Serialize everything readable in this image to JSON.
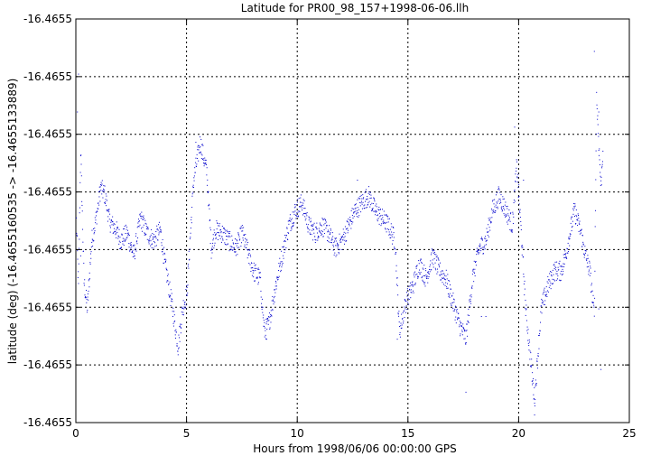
{
  "chart_data": {
    "type": "scatter",
    "title": "Latitude for PR00_98_157+1998-06-06.llh",
    "xlabel": "Hours from 1998/06/06 00:00:00 GPS",
    "ylabel": "latitude (deg) (-16.4655160535 -> -16.4655133889)",
    "xlim": [
      0,
      25
    ],
    "ylim": [
      -16.4655160535,
      -16.4655133889
    ],
    "x_ticks": [
      0,
      5,
      10,
      15,
      20,
      25
    ],
    "x_tick_labels": [
      "0",
      "5",
      "10",
      "15",
      "20",
      "25"
    ],
    "y_tick_labels": [
      "-16.4655",
      "-16.4655",
      "-16.4655",
      "-16.4655",
      "-16.4655",
      "-16.4655",
      "-16.4655",
      "-16.4655"
    ],
    "grid": true,
    "legend": "none",
    "series_color": "#0000cc",
    "trace": [
      [
        0.0,
        -16.46551472
      ],
      [
        0.1,
        -16.46551516
      ],
      [
        0.2,
        -16.46551425
      ],
      [
        0.35,
        -16.46551512
      ],
      [
        0.5,
        -16.4655153
      ],
      [
        0.7,
        -16.46551485
      ],
      [
        0.9,
        -16.4655147
      ],
      [
        1.1,
        -16.4655145
      ],
      [
        1.3,
        -16.46551455
      ],
      [
        1.5,
        -16.46551472
      ],
      [
        1.8,
        -16.46551478
      ],
      [
        2.0,
        -16.46551485
      ],
      [
        2.3,
        -16.4655148
      ],
      [
        2.6,
        -16.46551495
      ],
      [
        2.9,
        -16.4655147
      ],
      [
        3.2,
        -16.4655148
      ],
      [
        3.5,
        -16.46551485
      ],
      [
        3.8,
        -16.46551478
      ],
      [
        4.0,
        -16.465515
      ],
      [
        4.3,
        -16.46551525
      ],
      [
        4.6,
        -16.46551555
      ],
      [
        4.8,
        -16.4655153
      ],
      [
        5.0,
        -16.4655152
      ],
      [
        5.3,
        -16.46551445
      ],
      [
        5.6,
        -16.4655142
      ],
      [
        5.9,
        -16.4655144
      ],
      [
        6.1,
        -16.4655149
      ],
      [
        6.3,
        -16.46551478
      ],
      [
        6.6,
        -16.4655148
      ],
      [
        6.9,
        -16.46551485
      ],
      [
        7.2,
        -16.4655149
      ],
      [
        7.5,
        -16.4655148
      ],
      [
        7.8,
        -16.46551495
      ],
      [
        8.0,
        -16.46551505
      ],
      [
        8.3,
        -16.4655151
      ],
      [
        8.5,
        -16.46551545
      ],
      [
        8.7,
        -16.4655154
      ],
      [
        9.0,
        -16.46551515
      ],
      [
        9.3,
        -16.46551495
      ],
      [
        9.6,
        -16.46551475
      ],
      [
        9.9,
        -16.46551465
      ],
      [
        10.2,
        -16.4655146
      ],
      [
        10.5,
        -16.46551475
      ],
      [
        10.8,
        -16.4655148
      ],
      [
        11.1,
        -16.46551475
      ],
      [
        11.4,
        -16.4655148
      ],
      [
        11.7,
        -16.4655149
      ],
      [
        12.0,
        -16.46551485
      ],
      [
        12.3,
        -16.46551475
      ],
      [
        12.6,
        -16.46551465
      ],
      [
        12.9,
        -16.4655146
      ],
      [
        13.2,
        -16.46551455
      ],
      [
        13.5,
        -16.46551465
      ],
      [
        13.8,
        -16.4655147
      ],
      [
        14.1,
        -16.46551475
      ],
      [
        14.4,
        -16.46551485
      ],
      [
        14.6,
        -16.46551545
      ],
      [
        14.9,
        -16.46551525
      ],
      [
        15.2,
        -16.46551515
      ],
      [
        15.5,
        -16.465515
      ],
      [
        15.8,
        -16.4655151
      ],
      [
        16.1,
        -16.46551495
      ],
      [
        16.4,
        -16.46551505
      ],
      [
        16.7,
        -16.4655151
      ],
      [
        17.0,
        -16.46551525
      ],
      [
        17.3,
        -16.4655154
      ],
      [
        17.6,
        -16.4655155
      ],
      [
        17.9,
        -16.4655151
      ],
      [
        18.2,
        -16.4655149
      ],
      [
        18.5,
        -16.46551485
      ],
      [
        18.8,
        -16.46551465
      ],
      [
        19.1,
        -16.46551455
      ],
      [
        19.4,
        -16.46551465
      ],
      [
        19.7,
        -16.46551475
      ],
      [
        19.9,
        -16.46551435
      ],
      [
        20.1,
        -16.4655148
      ],
      [
        20.3,
        -16.4655153
      ],
      [
        20.5,
        -16.4655156
      ],
      [
        20.7,
        -16.4655159
      ],
      [
        21.0,
        -16.4655153
      ],
      [
        21.3,
        -16.46551515
      ],
      [
        21.6,
        -16.46551505
      ],
      [
        21.9,
        -16.46551505
      ],
      [
        22.1,
        -16.46551495
      ],
      [
        22.3,
        -16.4655148
      ],
      [
        22.5,
        -16.46551465
      ],
      [
        22.8,
        -16.4655148
      ],
      [
        23.0,
        -16.46551495
      ],
      [
        23.2,
        -16.46551505
      ],
      [
        23.4,
        -16.46551535
      ],
      [
        23.5,
        -16.4655139
      ],
      [
        23.7,
        -16.4655145
      ],
      [
        23.8,
        -16.4655142
      ]
    ],
    "outliers": [
      [
        0.1,
        -16.46551375
      ],
      [
        0.05,
        -16.465514
      ],
      [
        0.2,
        -16.46551495
      ],
      [
        4.7,
        -16.46551575
      ],
      [
        5.4,
        -16.4655142
      ],
      [
        8.6,
        -16.4655155
      ],
      [
        14.5,
        -16.4655155
      ],
      [
        18.3,
        -16.46551535
      ],
      [
        18.5,
        -16.46551535
      ],
      [
        19.8,
        -16.4655141
      ],
      [
        20.2,
        -16.46551445
      ],
      [
        20.6,
        -16.4655158
      ],
      [
        20.7,
        -16.465516
      ],
      [
        23.4,
        -16.4655136
      ],
      [
        23.6,
        -16.465514
      ],
      [
        23.7,
        -16.4655157
      ],
      [
        23.6,
        -16.4655153
      ],
      [
        17.6,
        -16.46551585
      ],
      [
        12.7,
        -16.46551445
      ]
    ]
  }
}
